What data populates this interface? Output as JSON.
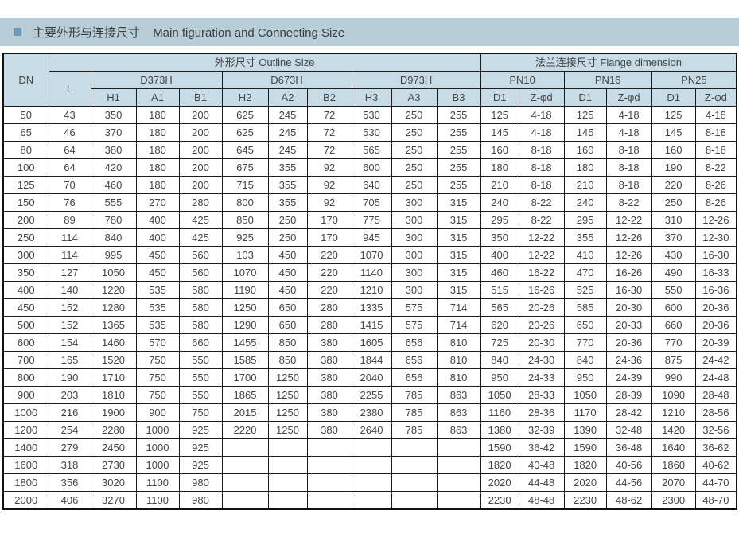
{
  "page": {
    "title": {
      "zh": "主要外形与连接尺寸",
      "en": "Main figuration and Connecting Size"
    }
  },
  "colors": {
    "title_bar_bg": "#b7ced9",
    "title_bullet": "#6f9db8",
    "table_header_bg": "#c8dce7",
    "grid_border": "#1c1c1c",
    "text": "#454545"
  },
  "table": {
    "header": {
      "dn": "DN",
      "l": "L",
      "outline_group": "外形尺寸 Outline Size",
      "flange_group": "法兰连接尺寸  Flange dimension",
      "series": [
        "D373H",
        "D673H",
        "D973H"
      ],
      "pn_classes": [
        "PN10",
        "PN16",
        "PN25"
      ],
      "outline_subcols": [
        "H1",
        "A1",
        "B1",
        "H2",
        "A2",
        "B2",
        "H3",
        "A3",
        "B3"
      ],
      "flange_subcols": [
        "D1",
        "Z-φd",
        "D1",
        "Z-φd",
        "D1",
        "Z-φd"
      ]
    },
    "rows": [
      [
        "50",
        "43",
        "350",
        "180",
        "200",
        "625",
        "245",
        "72",
        "530",
        "250",
        "255",
        "125",
        "4-18",
        "125",
        "4-18",
        "125",
        "4-18"
      ],
      [
        "65",
        "46",
        "370",
        "180",
        "200",
        "625",
        "245",
        "72",
        "530",
        "250",
        "255",
        "145",
        "4-18",
        "145",
        "4-18",
        "145",
        "8-18"
      ],
      [
        "80",
        "64",
        "380",
        "180",
        "200",
        "645",
        "245",
        "72",
        "565",
        "250",
        "255",
        "160",
        "8-18",
        "160",
        "8-18",
        "160",
        "8-18"
      ],
      [
        "100",
        "64",
        "420",
        "180",
        "200",
        "675",
        "355",
        "92",
        "600",
        "250",
        "255",
        "180",
        "8-18",
        "180",
        "8-18",
        "190",
        "8-22"
      ],
      [
        "125",
        "70",
        "460",
        "180",
        "200",
        "715",
        "355",
        "92",
        "640",
        "250",
        "255",
        "210",
        "8-18",
        "210",
        "8-18",
        "220",
        "8-26"
      ],
      [
        "150",
        "76",
        "555",
        "270",
        "280",
        "800",
        "355",
        "92",
        "705",
        "300",
        "315",
        "240",
        "8-22",
        "240",
        "8-22",
        "250",
        "8-26"
      ],
      [
        "200",
        "89",
        "780",
        "400",
        "425",
        "850",
        "250",
        "170",
        "775",
        "300",
        "315",
        "295",
        "8-22",
        "295",
        "12-22",
        "310",
        "12-26"
      ],
      [
        "250",
        "114",
        "840",
        "400",
        "425",
        "925",
        "250",
        "170",
        "945",
        "300",
        "315",
        "350",
        "12-22",
        "355",
        "12-26",
        "370",
        "12-30"
      ],
      [
        "300",
        "114",
        "995",
        "450",
        "560",
        "103",
        "450",
        "220",
        "1070",
        "300",
        "315",
        "400",
        "12-22",
        "410",
        "12-26",
        "430",
        "16-30"
      ],
      [
        "350",
        "127",
        "1050",
        "450",
        "560",
        "1070",
        "450",
        "220",
        "1140",
        "300",
        "315",
        "460",
        "16-22",
        "470",
        "16-26",
        "490",
        "16-33"
      ],
      [
        "400",
        "140",
        "1220",
        "535",
        "580",
        "1190",
        "450",
        "220",
        "1210",
        "300",
        "315",
        "515",
        "16-26",
        "525",
        "16-30",
        "550",
        "16-36"
      ],
      [
        "450",
        "152",
        "1280",
        "535",
        "580",
        "1250",
        "650",
        "280",
        "1335",
        "575",
        "714",
        "565",
        "20-26",
        "585",
        "20-30",
        "600",
        "20-36"
      ],
      [
        "500",
        "152",
        "1365",
        "535",
        "580",
        "1290",
        "650",
        "280",
        "1415",
        "575",
        "714",
        "620",
        "20-26",
        "650",
        "20-33",
        "660",
        "20-36"
      ],
      [
        "600",
        "154",
        "1460",
        "570",
        "660",
        "1455",
        "850",
        "380",
        "1605",
        "656",
        "810",
        "725",
        "20-30",
        "770",
        "20-36",
        "770",
        "20-39"
      ],
      [
        "700",
        "165",
        "1520",
        "750",
        "550",
        "1585",
        "850",
        "380",
        "1844",
        "656",
        "810",
        "840",
        "24-30",
        "840",
        "24-36",
        "875",
        "24-42"
      ],
      [
        "800",
        "190",
        "1710",
        "750",
        "550",
        "1700",
        "1250",
        "380",
        "2040",
        "656",
        "810",
        "950",
        "24-33",
        "950",
        "24-39",
        "990",
        "24-48"
      ],
      [
        "900",
        "203",
        "1810",
        "750",
        "550",
        "1865",
        "1250",
        "380",
        "2255",
        "785",
        "863",
        "1050",
        "28-33",
        "1050",
        "28-39",
        "1090",
        "28-48"
      ],
      [
        "1000",
        "216",
        "1900",
        "900",
        "750",
        "2015",
        "1250",
        "380",
        "2380",
        "785",
        "863",
        "1160",
        "28-36",
        "1170",
        "28-42",
        "1210",
        "28-56"
      ],
      [
        "1200",
        "254",
        "2280",
        "1000",
        "925",
        "2220",
        "1250",
        "380",
        "2640",
        "785",
        "863",
        "1380",
        "32-39",
        "1390",
        "32-48",
        "1420",
        "32-56"
      ],
      [
        "1400",
        "279",
        "2450",
        "1000",
        "925",
        "",
        "",
        "",
        "",
        "",
        "",
        "1590",
        "36-42",
        "1590",
        "36-48",
        "1640",
        "36-62"
      ],
      [
        "1600",
        "318",
        "2730",
        "1000",
        "925",
        "",
        "",
        "",
        "",
        "",
        "",
        "1820",
        "40-48",
        "1820",
        "40-56",
        "1860",
        "40-62"
      ],
      [
        "1800",
        "356",
        "3020",
        "1100",
        "980",
        "",
        "",
        "",
        "",
        "",
        "",
        "2020",
        "44-48",
        "2020",
        "44-56",
        "2070",
        "44-70"
      ],
      [
        "2000",
        "406",
        "3270",
        "1100",
        "980",
        "",
        "",
        "",
        "",
        "",
        "",
        "2230",
        "48-48",
        "2230",
        "48-62",
        "2300",
        "48-70"
      ]
    ]
  }
}
